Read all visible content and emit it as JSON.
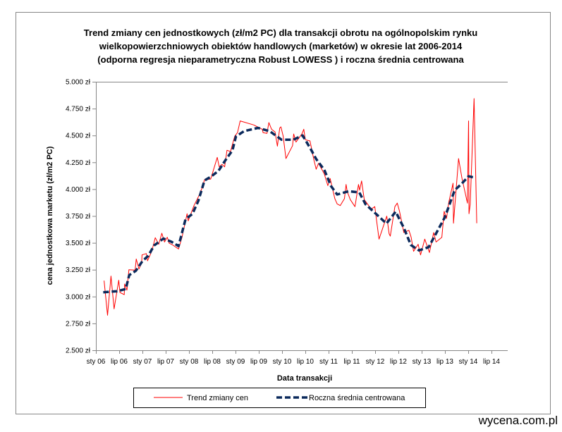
{
  "watermark": "wycena.com.pl",
  "colors": {
    "trend": "#ff0000",
    "average": "#0b2a5c",
    "axis": "#868686",
    "border": "#868686"
  },
  "chart_data": {
    "type": "line",
    "title": [
      "Trend zmiany cen jednostkowych (zł/m2 PC) dla transakcji obrotu  na ogólnopolskim rynku",
      "wielkopowierzchniowych obiektów handlowych (marketów) w okresie lat 2006-2014",
      "(odporna regresja nieparametryczna  Robust LOWESS ) i roczna średnia centrowana"
    ],
    "xlabel": "Data transakcji",
    "ylabel": "cena jednostkowa  marketu (zł/m2 PC)",
    "ylim": [
      2.5,
      5.0
    ],
    "yticks": [
      "2.500 zł",
      "2.750 zł",
      "3.000 zł",
      "3.250 zł",
      "3.500 zł",
      "3.750 zł",
      "4.000 zł",
      "4.250 zł",
      "4.500 zł",
      "4.750 zł",
      "5.000 zł"
    ],
    "xticks": [
      "sty 06",
      "lip 06",
      "sty 07",
      "lip 07",
      "sty 08",
      "lip 08",
      "sty 09",
      "lip 09",
      "sty 10",
      "lip 10",
      "sty 11",
      "lip 11",
      "sty 12",
      "lip 12",
      "sty 13",
      "lip 13",
      "sty 14",
      "lip 14"
    ],
    "xlim": [
      "2006-01-01",
      "2014-10-01"
    ],
    "grid": false,
    "legend_placement": "bottom",
    "series": [
      {
        "name": "Trend zmiany cen",
        "style": "solid",
        "color": "#ff0000",
        "x": [
          "2006-03-04",
          "2006-04-01",
          "2006-04-28",
          "2006-05-22",
          "2006-06-28",
          "2006-07-07",
          "2006-08-10",
          "2006-08-13",
          "2006-09-01",
          "2006-09-16",
          "2006-11-04",
          "2006-11-13",
          "2006-12-04",
          "2006-12-25",
          "2006-12-28",
          "2007-02-01",
          "2007-02-10",
          "2007-03-13",
          "2007-04-10",
          "2007-05-07",
          "2007-06-01",
          "2007-06-22",
          "2007-07-13",
          "2007-07-28",
          "2007-08-25",
          "2007-10-10",
          "2007-11-07",
          "2007-12-16",
          "2007-12-25",
          "2008-02-10",
          "2008-03-16",
          "2008-04-16",
          "2008-05-01",
          "2008-06-19",
          "2008-08-10",
          "2008-08-25",
          "2008-09-16",
          "2008-10-07",
          "2008-10-25",
          "2008-11-22",
          "2008-12-10",
          "2008-12-25",
          "2009-01-16",
          "2009-02-07",
          "2009-05-22",
          "2009-07-28",
          "2009-08-04",
          "2009-09-04",
          "2009-09-19",
          "2009-10-10",
          "2009-11-07",
          "2009-11-25",
          "2009-12-13",
          "2009-12-22",
          "2010-01-10",
          "2010-02-01",
          "2010-03-22",
          "2010-04-01",
          "2010-04-19",
          "2010-06-04",
          "2010-06-19",
          "2010-07-01",
          "2010-08-07",
          "2010-09-07",
          "2010-09-25",
          "2010-10-13",
          "2010-11-28",
          "2010-12-25",
          "2011-01-13",
          "2011-02-19",
          "2011-03-07",
          "2011-04-01",
          "2011-05-04",
          "2011-05-16",
          "2011-05-25",
          "2011-06-19",
          "2011-07-25",
          "2011-08-22",
          "2011-09-01",
          "2011-09-16",
          "2011-10-07",
          "2011-12-01",
          "2011-12-28",
          "2012-02-01",
          "2012-04-01",
          "2012-04-19",
          "2012-04-28",
          "2012-06-04",
          "2012-06-22",
          "2012-07-10",
          "2012-08-13",
          "2012-09-22",
          "2012-10-10",
          "2012-10-28",
          "2012-12-04",
          "2012-12-22",
          "2013-01-25",
          "2013-03-01",
          "2013-04-04",
          "2013-04-22",
          "2013-06-07",
          "2013-06-25",
          "2013-07-13",
          "2013-08-01",
          "2013-09-04",
          "2013-09-07",
          "2013-10-16",
          "2013-11-13",
          "2013-12-25",
          "2014-01-04",
          "2014-01-07",
          "2014-01-16",
          "2014-02-16",
          "2014-03-07"
        ],
        "y": [
          3.148,
          2.826,
          3.19,
          2.885,
          3.152,
          3.038,
          3.018,
          3.117,
          3.06,
          3.25,
          3.246,
          3.35,
          3.257,
          3.312,
          3.388,
          3.4,
          3.333,
          3.421,
          3.548,
          3.486,
          3.589,
          3.508,
          3.552,
          3.497,
          3.48,
          3.443,
          3.552,
          3.771,
          3.705,
          3.847,
          3.935,
          4.022,
          4.088,
          4.094,
          4.296,
          4.208,
          4.23,
          4.208,
          4.362,
          4.35,
          4.427,
          4.493,
          4.526,
          4.635,
          4.598,
          4.558,
          4.526,
          4.519,
          4.62,
          4.558,
          4.532,
          4.4,
          4.569,
          4.58,
          4.493,
          4.285,
          4.405,
          4.514,
          4.438,
          4.514,
          4.558,
          4.46,
          4.449,
          4.274,
          4.186,
          4.241,
          4.142,
          4.033,
          4.099,
          3.913,
          3.863,
          3.847,
          3.913,
          4.044,
          3.978,
          3.902,
          3.837,
          4.044,
          3.99,
          4.077,
          3.902,
          3.814,
          3.837,
          3.535,
          3.749,
          3.585,
          3.563,
          3.837,
          3.87,
          3.793,
          3.596,
          3.617,
          3.552,
          3.421,
          3.486,
          3.388,
          3.535,
          3.41,
          3.596,
          3.508,
          3.552,
          3.793,
          3.727,
          3.88,
          4.055,
          3.683,
          4.285,
          4.099,
          3.87,
          4.635,
          3.771,
          3.858,
          4.843,
          3.683
        ]
      },
      {
        "name": "Roczna średnia centrowana",
        "style": "dashed",
        "color": "#0b2a5c",
        "x": [
          "2006-02-28",
          "2006-06-16",
          "2006-08-22",
          "2006-09-19",
          "2006-11-10",
          "2007-01-01",
          "2007-02-16",
          "2007-04-01",
          "2007-06-13",
          "2007-08-16",
          "2007-10-10",
          "2007-12-04",
          "2008-01-28",
          "2008-03-13",
          "2008-05-01",
          "2008-06-25",
          "2008-08-19",
          "2008-10-13",
          "2008-12-07",
          "2009-01-04",
          "2009-03-07",
          "2009-06-25",
          "2009-09-25",
          "2009-12-28",
          "2010-03-28",
          "2010-06-10",
          "2010-08-10",
          "2010-09-25",
          "2010-11-28",
          "2011-01-19",
          "2011-03-07",
          "2011-06-07",
          "2011-08-28",
          "2011-10-16",
          "2011-12-28",
          "2012-03-28",
          "2012-06-10",
          "2012-08-13",
          "2012-10-07",
          "2012-12-10",
          "2013-02-25",
          "2013-04-19",
          "2013-07-01",
          "2013-09-16",
          "2013-11-10",
          "2014-01-04",
          "2014-02-10"
        ],
        "y": [
          3.04,
          3.05,
          3.07,
          3.2,
          3.24,
          3.33,
          3.38,
          3.475,
          3.54,
          3.51,
          3.47,
          3.72,
          3.77,
          3.89,
          4.08,
          4.12,
          4.17,
          4.27,
          4.36,
          4.49,
          4.54,
          4.57,
          4.54,
          4.46,
          4.46,
          4.5,
          4.38,
          4.28,
          4.18,
          4.03,
          3.95,
          3.98,
          3.97,
          3.86,
          3.78,
          3.68,
          3.79,
          3.64,
          3.48,
          3.43,
          3.46,
          3.58,
          3.74,
          3.99,
          4.05,
          4.12,
          4.11
        ]
      }
    ]
  }
}
